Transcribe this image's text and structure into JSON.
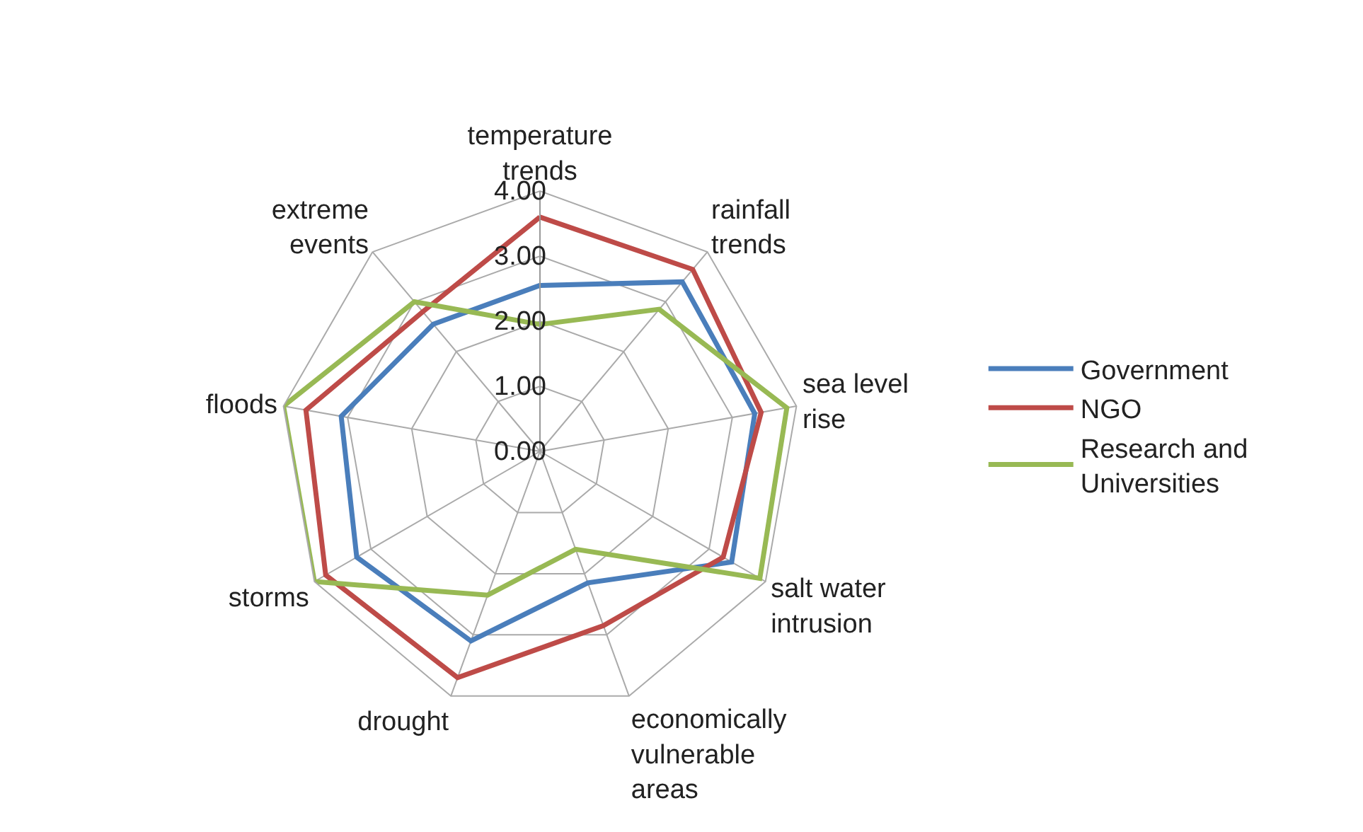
{
  "chart_data": {
    "type": "radar",
    "categories": [
      "temperature trends",
      "rainfall trends",
      "sea level rise",
      "salt water intrusion",
      "economically vulnerable areas",
      "drought",
      "storms",
      "floods",
      "extreme events"
    ],
    "series": [
      {
        "name": "Government",
        "color": "#4a7ebb",
        "values": [
          2.55,
          3.4,
          3.35,
          3.4,
          2.15,
          3.1,
          3.25,
          3.1,
          2.55
        ]
      },
      {
        "name": "NGO",
        "color": "#be4b48",
        "values": [
          3.6,
          3.65,
          3.45,
          3.25,
          2.85,
          3.7,
          3.8,
          3.65,
          2.8
        ]
      },
      {
        "name": "Research and Universities",
        "color": "#98b954",
        "values": [
          1.95,
          2.85,
          3.85,
          3.9,
          1.6,
          2.35,
          4.0,
          4.0,
          3.0
        ]
      }
    ],
    "ylim": [
      0,
      4
    ],
    "yticks": [
      {
        "value": 0,
        "label": "0.00"
      },
      {
        "value": 1,
        "label": "1.00"
      },
      {
        "value": 2,
        "label": "2.00"
      },
      {
        "value": 3,
        "label": "3.00"
      },
      {
        "value": 4,
        "label": "4.00"
      }
    ],
    "grid": true,
    "legend": "right",
    "marker": "none",
    "line_style": "solid"
  }
}
